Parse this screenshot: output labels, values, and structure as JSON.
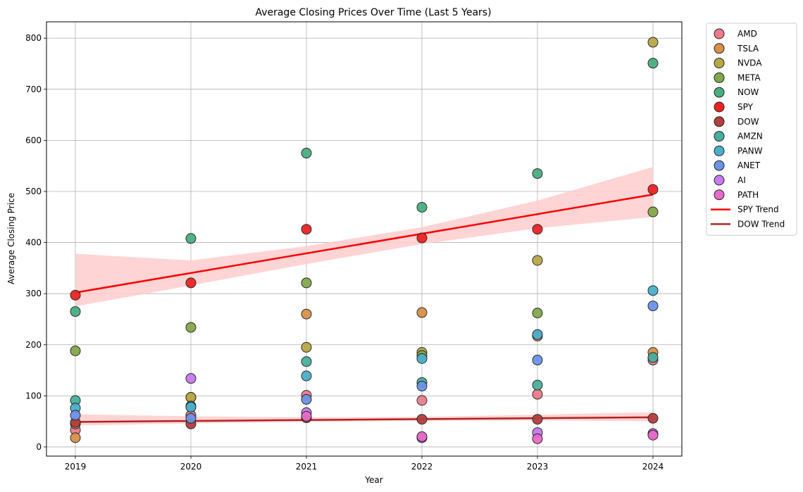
{
  "chart_data": {
    "type": "scatter",
    "title": "Average Closing Prices Over Time (Last 5 Years)",
    "xlabel": "Year",
    "ylabel": "Average Closing Price",
    "x_ticks": [
      "2019",
      "2020",
      "2021",
      "2022",
      "2023",
      "2024"
    ],
    "y_ticks": [
      "0",
      "100",
      "200",
      "300",
      "400",
      "500",
      "600",
      "700",
      "800"
    ],
    "xlim": [
      2018.75,
      2024.25
    ],
    "ylim": [
      -18,
      832
    ],
    "grid": true,
    "legend_position": "outside-top-right",
    "x": [
      2019,
      2020,
      2021,
      2022,
      2023,
      2024
    ],
    "series": [
      {
        "name": "AMD",
        "color": "#ee7b8c",
        "values": [
          33,
          62,
          101,
          91,
          103,
          170
        ]
      },
      {
        "name": "TSLA",
        "color": "#d99048",
        "values": [
          18,
          97,
          260,
          263,
          217,
          185
        ]
      },
      {
        "name": "NVDA",
        "color": "#b8a846",
        "values": [
          45,
          97,
          195,
          185,
          365,
          792
        ]
      },
      {
        "name": "META",
        "color": "#82a84a",
        "values": [
          188,
          234,
          321,
          179,
          262,
          460
        ]
      },
      {
        "name": "NOW",
        "color": "#48ae80",
        "values": [
          265,
          408,
          575,
          469,
          535,
          751
        ]
      },
      {
        "name": "SPY",
        "color": "#ee2222",
        "values": [
          297,
          321,
          426,
          409,
          426,
          504
        ]
      },
      {
        "name": "DOW",
        "color": "#b23e3e",
        "values": [
          48,
          45,
          57,
          54,
          54,
          56
        ]
      },
      {
        "name": "AMZN",
        "color": "#48ae9e",
        "values": [
          91,
          80,
          167,
          126,
          121,
          175
        ]
      },
      {
        "name": "PANW",
        "color": "#4aafcb",
        "values": [
          76,
          78,
          139,
          173,
          220,
          306
        ]
      },
      {
        "name": "ANET",
        "color": "#6c92e8",
        "values": [
          62,
          56,
          93,
          119,
          170,
          276
        ]
      },
      {
        "name": "AI",
        "color": "#c779ef",
        "values": [
          null,
          134,
          67,
          18,
          28,
          26
        ]
      },
      {
        "name": "PATH",
        "color": "#e86ac7",
        "values": [
          null,
          null,
          60,
          20,
          16,
          23
        ]
      }
    ],
    "trend_lines": [
      {
        "name": "SPY Trend",
        "color": "#ff0000",
        "start": [
          2019,
          302
        ],
        "end": [
          2024,
          494
        ],
        "band_color": "#ffcccc",
        "band": [
          [
            2019,
            275,
            378
          ],
          [
            2020,
            316,
            365
          ],
          [
            2021,
            358,
            393
          ],
          [
            2022,
            397,
            430
          ],
          [
            2023,
            428,
            482
          ],
          [
            2024,
            450,
            548
          ]
        ]
      },
      {
        "name": "DOW Trend",
        "color": "#b22222",
        "start": [
          2019,
          49
        ],
        "end": [
          2024,
          58
        ],
        "band_color": "#ffcccc",
        "band": [
          [
            2019,
            42,
            64
          ],
          [
            2020,
            46,
            60
          ],
          [
            2021,
            49,
            58
          ],
          [
            2022,
            51,
            59
          ],
          [
            2023,
            52,
            63
          ],
          [
            2024,
            50,
            68
          ]
        ]
      }
    ]
  }
}
